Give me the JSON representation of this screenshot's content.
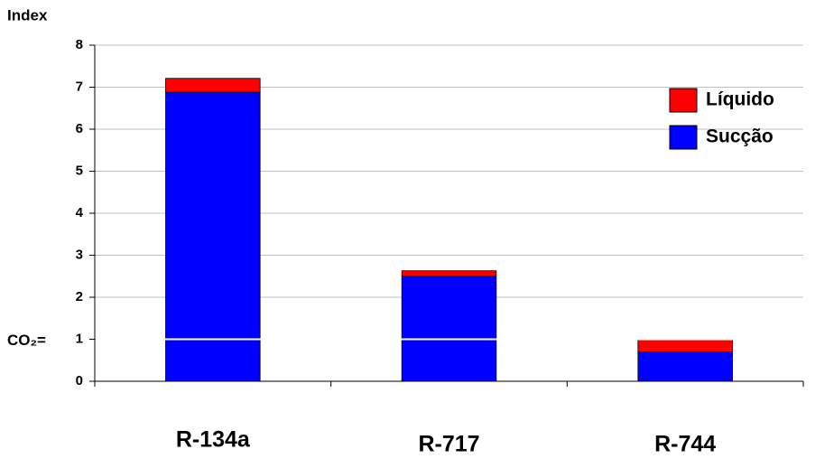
{
  "chart_data": {
    "type": "stacked_bar",
    "y_label": "Index",
    "categories": [
      "R-134a",
      "R-717",
      "R-744"
    ],
    "series": [
      {
        "name": "Sucção",
        "color": "#0000ff",
        "values": [
          6.88,
          2.5,
          0.7
        ]
      },
      {
        "name": "Líquido",
        "color": "#ff0000",
        "values": [
          0.33,
          0.13,
          0.3
        ]
      }
    ],
    "ylim": [
      0,
      8
    ],
    "yticks": [
      0,
      1,
      2,
      3,
      4,
      5,
      6,
      7,
      8
    ],
    "grid": true,
    "legend": "upper right",
    "annotation": {
      "text": "CO₂=",
      "y": 1
    }
  }
}
